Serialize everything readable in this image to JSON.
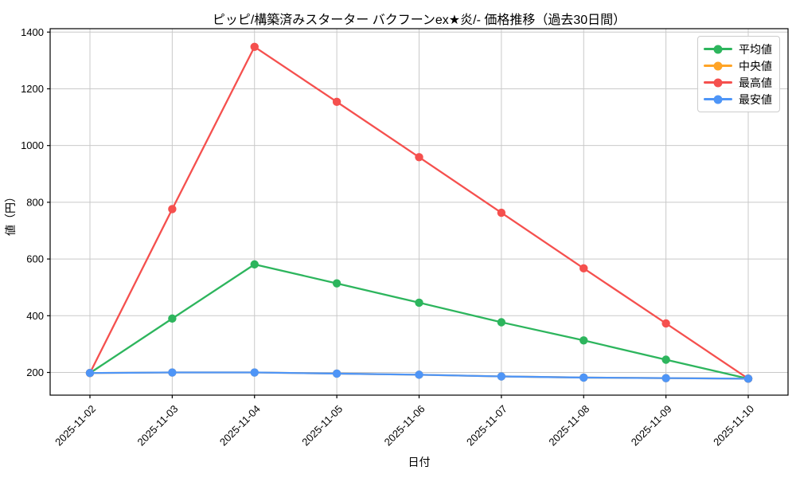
{
  "chart_data": {
    "type": "line",
    "title": "ピッピ/構築済みスターター バクフーンex★炎/- 価格推移（過去30日間）",
    "xlabel": "日付",
    "ylabel": "値（円）",
    "x": [
      "2025-11-02",
      "2025-11-03",
      "2025-11-04",
      "2025-11-05",
      "2025-11-06",
      "2025-11-07",
      "2025-11-08",
      "2025-11-09",
      "2025-11-10"
    ],
    "series": [
      {
        "name": "平均値",
        "color": "#2DB55D",
        "values": [
          198,
          390,
          581,
          514,
          446,
          377,
          313,
          245,
          178
        ]
      },
      {
        "name": "中央値",
        "color": "#FFA426",
        "values": [
          198,
          200,
          200,
          196,
          192,
          186,
          182,
          180,
          178
        ]
      },
      {
        "name": "最高値",
        "color": "#F5504E",
        "values": [
          198,
          776,
          1348,
          1154,
          959,
          763,
          567,
          373,
          178
        ]
      },
      {
        "name": "最安値",
        "color": "#4E95F7",
        "values": [
          198,
          200,
          200,
          196,
          192,
          186,
          182,
          180,
          178
        ]
      }
    ],
    "yticks": [
      200,
      400,
      600,
      800,
      1000,
      1200,
      1400
    ],
    "ylim": [
      120,
      1412
    ],
    "grid": true,
    "grid_color": "#c9c9c9",
    "axis_color": "#000000",
    "legend_position": "top-right",
    "note": "中央値(orange) series is fully overlapped by 最安値(blue) series"
  }
}
